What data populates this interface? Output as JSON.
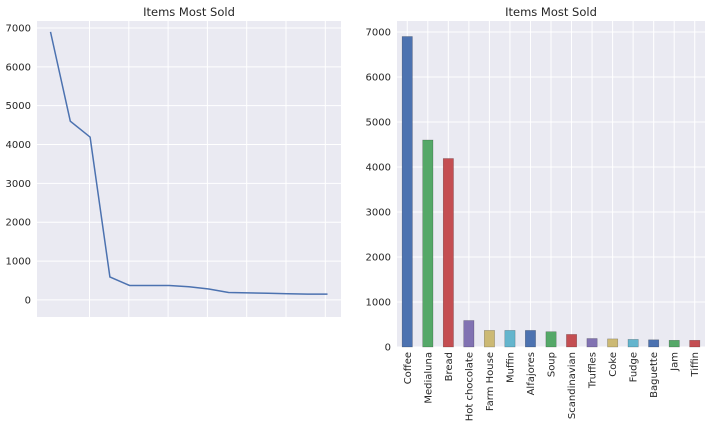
{
  "chart_data": [
    {
      "type": "line",
      "title": "Items Most Sold",
      "x": [
        0,
        1,
        2,
        3,
        4,
        5,
        6,
        7,
        8,
        9,
        10,
        11,
        12,
        13,
        14
      ],
      "values": [
        6900,
        4600,
        4190,
        590,
        370,
        370,
        370,
        340,
        280,
        190,
        180,
        170,
        160,
        150,
        150
      ],
      "yticks": [
        0,
        1000,
        2000,
        3000,
        4000,
        5000,
        6000,
        7000
      ],
      "xlabel": "",
      "ylabel": "",
      "grid": true,
      "line_color": "#4C72B0",
      "background": "#EAEAF2"
    },
    {
      "type": "bar",
      "title": "Items Most Sold",
      "categories": [
        "Coffee",
        "Medialuna",
        "Bread",
        "Hot chocolate",
        "Farm House",
        "Muffin",
        "Alfajores",
        "Soup",
        "Scandinavian",
        "Truffles",
        "Coke",
        "Fudge",
        "Baguette",
        "Jam",
        "Tiffin"
      ],
      "values": [
        6900,
        4600,
        4190,
        590,
        370,
        370,
        370,
        340,
        280,
        190,
        180,
        170,
        160,
        150,
        150
      ],
      "yticks": [
        0,
        1000,
        2000,
        3000,
        4000,
        5000,
        6000,
        7000
      ],
      "xlabel": "",
      "ylabel": "",
      "grid": true,
      "bar_colors": [
        "#4C72B0",
        "#55A868",
        "#C44E52",
        "#8172B2",
        "#CCB974",
        "#64B5CD"
      ],
      "background": "#EAEAF2"
    }
  ]
}
